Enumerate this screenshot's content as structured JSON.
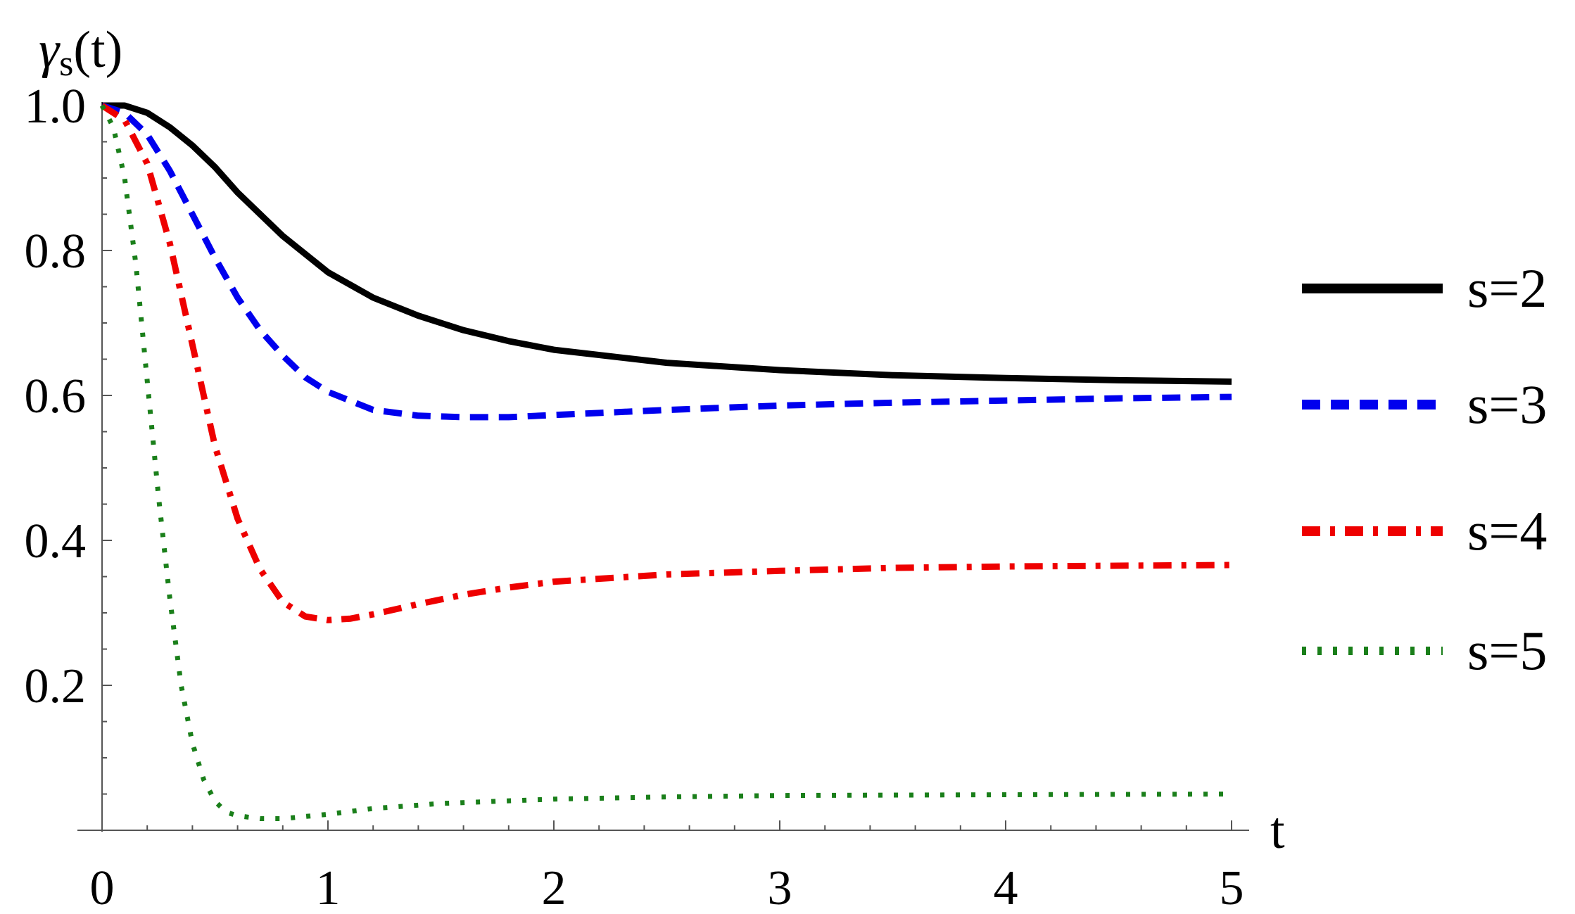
{
  "chart_data": {
    "type": "line",
    "title": "",
    "xlabel": "t",
    "ylabel": "γ",
    "ylabel_sub": "s",
    "ylabel_suffix": "(t)",
    "xlim": [
      0,
      5
    ],
    "ylim": [
      0,
      1.0
    ],
    "x_ticks": [
      0,
      1,
      2,
      3,
      4,
      5
    ],
    "x_tick_labels": [
      "0",
      "1",
      "2",
      "3",
      "4",
      "5"
    ],
    "y_ticks": [
      0.2,
      0.4,
      0.6,
      0.8,
      1.0
    ],
    "y_tick_labels": [
      "0.2",
      "0.4",
      "0.6",
      "0.8",
      "1.0"
    ],
    "grid": false,
    "legend_position": "right",
    "series": [
      {
        "name": "s=2",
        "color": "#000000",
        "style": "solid",
        "x": [
          0,
          0.1,
          0.2,
          0.3,
          0.4,
          0.5,
          0.6,
          0.7,
          0.8,
          0.9,
          1.0,
          1.2,
          1.4,
          1.6,
          1.8,
          2.0,
          2.5,
          3.0,
          3.5,
          4.0,
          4.5,
          5.0
        ],
        "y": [
          1.0,
          1.0,
          0.99,
          0.97,
          0.945,
          0.915,
          0.88,
          0.85,
          0.82,
          0.795,
          0.77,
          0.735,
          0.71,
          0.69,
          0.675,
          0.663,
          0.645,
          0.635,
          0.628,
          0.624,
          0.621,
          0.619
        ]
      },
      {
        "name": "s=3",
        "color": "#0000ee",
        "style": "dashed",
        "x": [
          0,
          0.1,
          0.2,
          0.3,
          0.4,
          0.5,
          0.6,
          0.7,
          0.8,
          0.9,
          1.0,
          1.2,
          1.4,
          1.6,
          1.8,
          2.0,
          2.5,
          3.0,
          3.5,
          4.0,
          4.5,
          5.0
        ],
        "y": [
          1.0,
          0.99,
          0.96,
          0.91,
          0.85,
          0.79,
          0.735,
          0.69,
          0.655,
          0.625,
          0.605,
          0.58,
          0.572,
          0.57,
          0.57,
          0.573,
          0.58,
          0.586,
          0.59,
          0.593,
          0.596,
          0.598
        ]
      },
      {
        "name": "s=4",
        "color": "#ee0000",
        "style": "dashdot",
        "x": [
          0,
          0.1,
          0.2,
          0.3,
          0.4,
          0.5,
          0.6,
          0.7,
          0.8,
          0.9,
          1.0,
          1.1,
          1.2,
          1.4,
          1.6,
          1.8,
          2.0,
          2.5,
          3.0,
          3.5,
          4.0,
          4.5,
          5.0
        ],
        "y": [
          1.0,
          0.98,
          0.92,
          0.81,
          0.67,
          0.53,
          0.43,
          0.36,
          0.315,
          0.295,
          0.29,
          0.292,
          0.298,
          0.312,
          0.325,
          0.335,
          0.343,
          0.353,
          0.358,
          0.362,
          0.364,
          0.365,
          0.366
        ]
      },
      {
        "name": "s=5",
        "color": "#1a7f1a",
        "style": "dotted",
        "x": [
          0,
          0.05,
          0.1,
          0.15,
          0.2,
          0.25,
          0.3,
          0.35,
          0.4,
          0.45,
          0.5,
          0.55,
          0.6,
          0.7,
          0.8,
          0.9,
          1.0,
          1.2,
          1.5,
          2.0,
          2.5,
          3.0,
          4.0,
          5.0
        ],
        "y": [
          1.0,
          0.97,
          0.9,
          0.78,
          0.62,
          0.46,
          0.32,
          0.2,
          0.12,
          0.07,
          0.04,
          0.025,
          0.02,
          0.016,
          0.016,
          0.019,
          0.022,
          0.03,
          0.037,
          0.043,
          0.046,
          0.048,
          0.049,
          0.05
        ]
      }
    ]
  }
}
